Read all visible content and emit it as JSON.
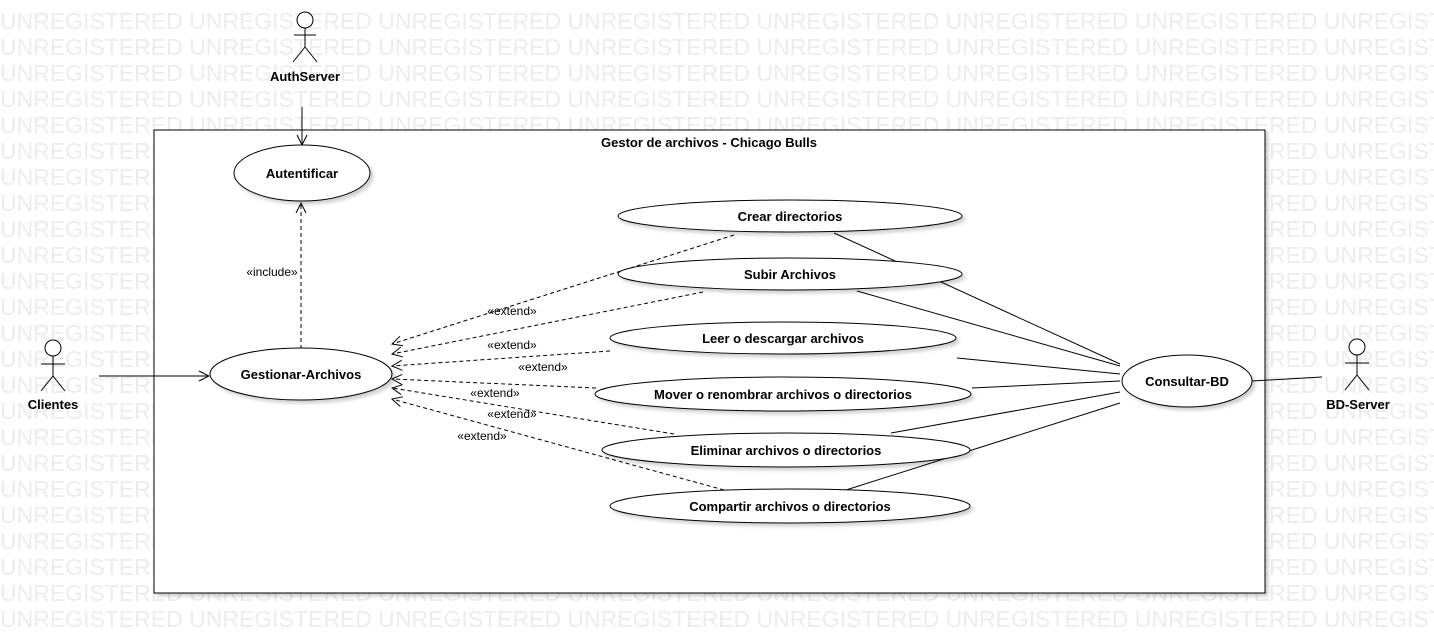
{
  "watermark": {
    "text": "UNREGISTERED UNREGISTERED UNREGISTERED UNREGISTERED UNREGISTERED UNREGISTERED UNREGISTERED UNREGISTERED UNREGISTERED",
    "color": "#ececec"
  },
  "system": {
    "title": "Gestor de archivos - Chicago Bulls"
  },
  "actors": {
    "auth": "AuthServer",
    "clients": "Clientes",
    "db": "BD-Server"
  },
  "use_cases": {
    "autentificar": "Autentificar",
    "gestionar": "Gestionar-Archivos",
    "crear": "Crear directorios",
    "subir": "Subir Archivos",
    "leer": "Leer o descargar archivos",
    "mover": "Mover o renombrar archivos o directorios",
    "eliminar": "Eliminar archivos o directorios",
    "compartir": "Compartir archivos o directorios",
    "consultar": "Consultar-BD"
  },
  "relations": {
    "include": "«include»",
    "extend": "«extend»"
  }
}
